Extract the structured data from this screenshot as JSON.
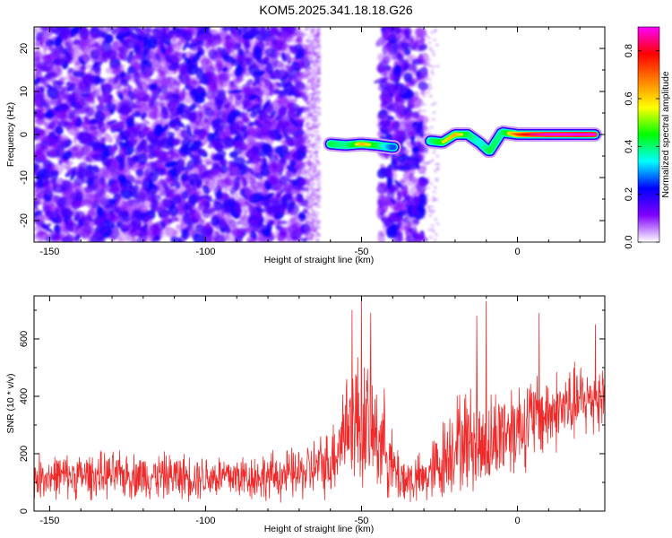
{
  "title": "KOM5.2025.341.18.18.G26",
  "chart_data": [
    {
      "type": "heatmap",
      "name": "spectrogram",
      "xlabel": "Height of straight line (km)",
      "ylabel": "Frequency (Hz)",
      "xlim": [
        -155,
        28
      ],
      "ylim": [
        -25,
        25
      ],
      "xticks": [
        -150,
        -100,
        -50,
        0
      ],
      "yticks": [
        -20,
        -10,
        0,
        10,
        20
      ],
      "colorbar": {
        "label": "Normalized spectral amplitude",
        "range": [
          0.0,
          0.9
        ],
        "ticks": [
          0.0,
          0.2,
          0.4,
          0.6,
          0.8
        ],
        "colormap": [
          "#ffffff",
          "#8000ff",
          "#0000ff",
          "#00ffff",
          "#00ff00",
          "#ffff00",
          "#ff8000",
          "#ff0000",
          "#ff00ff"
        ]
      },
      "noise_regions_km": [
        [
          -155,
          -68
        ],
        [
          -44,
          -30
        ]
      ],
      "signal_ridge": {
        "points": [
          {
            "x": -67,
            "y": -2.5,
            "amp": 0.45
          },
          {
            "x": -60,
            "y": -2.2,
            "amp": 0.5
          },
          {
            "x": -55,
            "y": -2.5,
            "amp": 0.45
          },
          {
            "x": -50,
            "y": -2.2,
            "amp": 0.6
          },
          {
            "x": -45,
            "y": -2.5,
            "amp": 0.5
          },
          {
            "x": -40,
            "y": -3.0,
            "amp": 0.3
          },
          {
            "x": -28,
            "y": -1.5,
            "amp": 0.45
          },
          {
            "x": -24,
            "y": -1.8,
            "amp": 0.55
          },
          {
            "x": -20,
            "y": 0.0,
            "amp": 0.6
          },
          {
            "x": -16,
            "y": 0.0,
            "amp": 0.5
          },
          {
            "x": -12,
            "y": -2.0,
            "amp": 0.4
          },
          {
            "x": -9,
            "y": -4.0,
            "amp": 0.5
          },
          {
            "x": -5,
            "y": 0.5,
            "amp": 0.45
          },
          {
            "x": 0,
            "y": 0.0,
            "amp": 0.7
          },
          {
            "x": 5,
            "y": 0.0,
            "amp": 0.8
          },
          {
            "x": 10,
            "y": 0.0,
            "amp": 0.85
          },
          {
            "x": 15,
            "y": 0.0,
            "amp": 0.85
          },
          {
            "x": 20,
            "y": 0.0,
            "amp": 0.88
          },
          {
            "x": 25,
            "y": 0.0,
            "amp": 0.85
          }
        ]
      }
    },
    {
      "type": "line",
      "name": "snr",
      "xlabel": "Height of straight line (km)",
      "ylabel": "SNR (10 * v/v)",
      "xlim": [
        -155,
        28
      ],
      "ylim": [
        0,
        750
      ],
      "xticks": [
        -150,
        -100,
        -50,
        0
      ],
      "yticks": [
        0,
        200,
        400,
        600
      ],
      "color": "#ee2a2a",
      "envelope": {
        "x": [
          -155,
          -130,
          -100,
          -80,
          -70,
          -60,
          -55,
          -50,
          -47,
          -42,
          -40,
          -36,
          -30,
          -25,
          -20,
          -15,
          -10,
          -5,
          0,
          10,
          20,
          28
        ],
        "base": [
          120,
          125,
          120,
          120,
          130,
          170,
          300,
          320,
          280,
          230,
          140,
          110,
          110,
          160,
          240,
          250,
          220,
          280,
          300,
          340,
          380,
          400
        ],
        "amp": [
          90,
          95,
          95,
          100,
          110,
          140,
          250,
          300,
          260,
          200,
          150,
          110,
          100,
          170,
          200,
          220,
          200,
          210,
          200,
          170,
          160,
          150
        ]
      },
      "peaks": [
        {
          "x": -50,
          "y": 745
        },
        {
          "x": -53,
          "y": 700
        },
        {
          "x": -47,
          "y": 690
        },
        {
          "x": -10,
          "y": 730
        },
        {
          "x": -13,
          "y": 680
        },
        {
          "x": 7,
          "y": 690
        },
        {
          "x": 25,
          "y": 650
        }
      ]
    }
  ]
}
